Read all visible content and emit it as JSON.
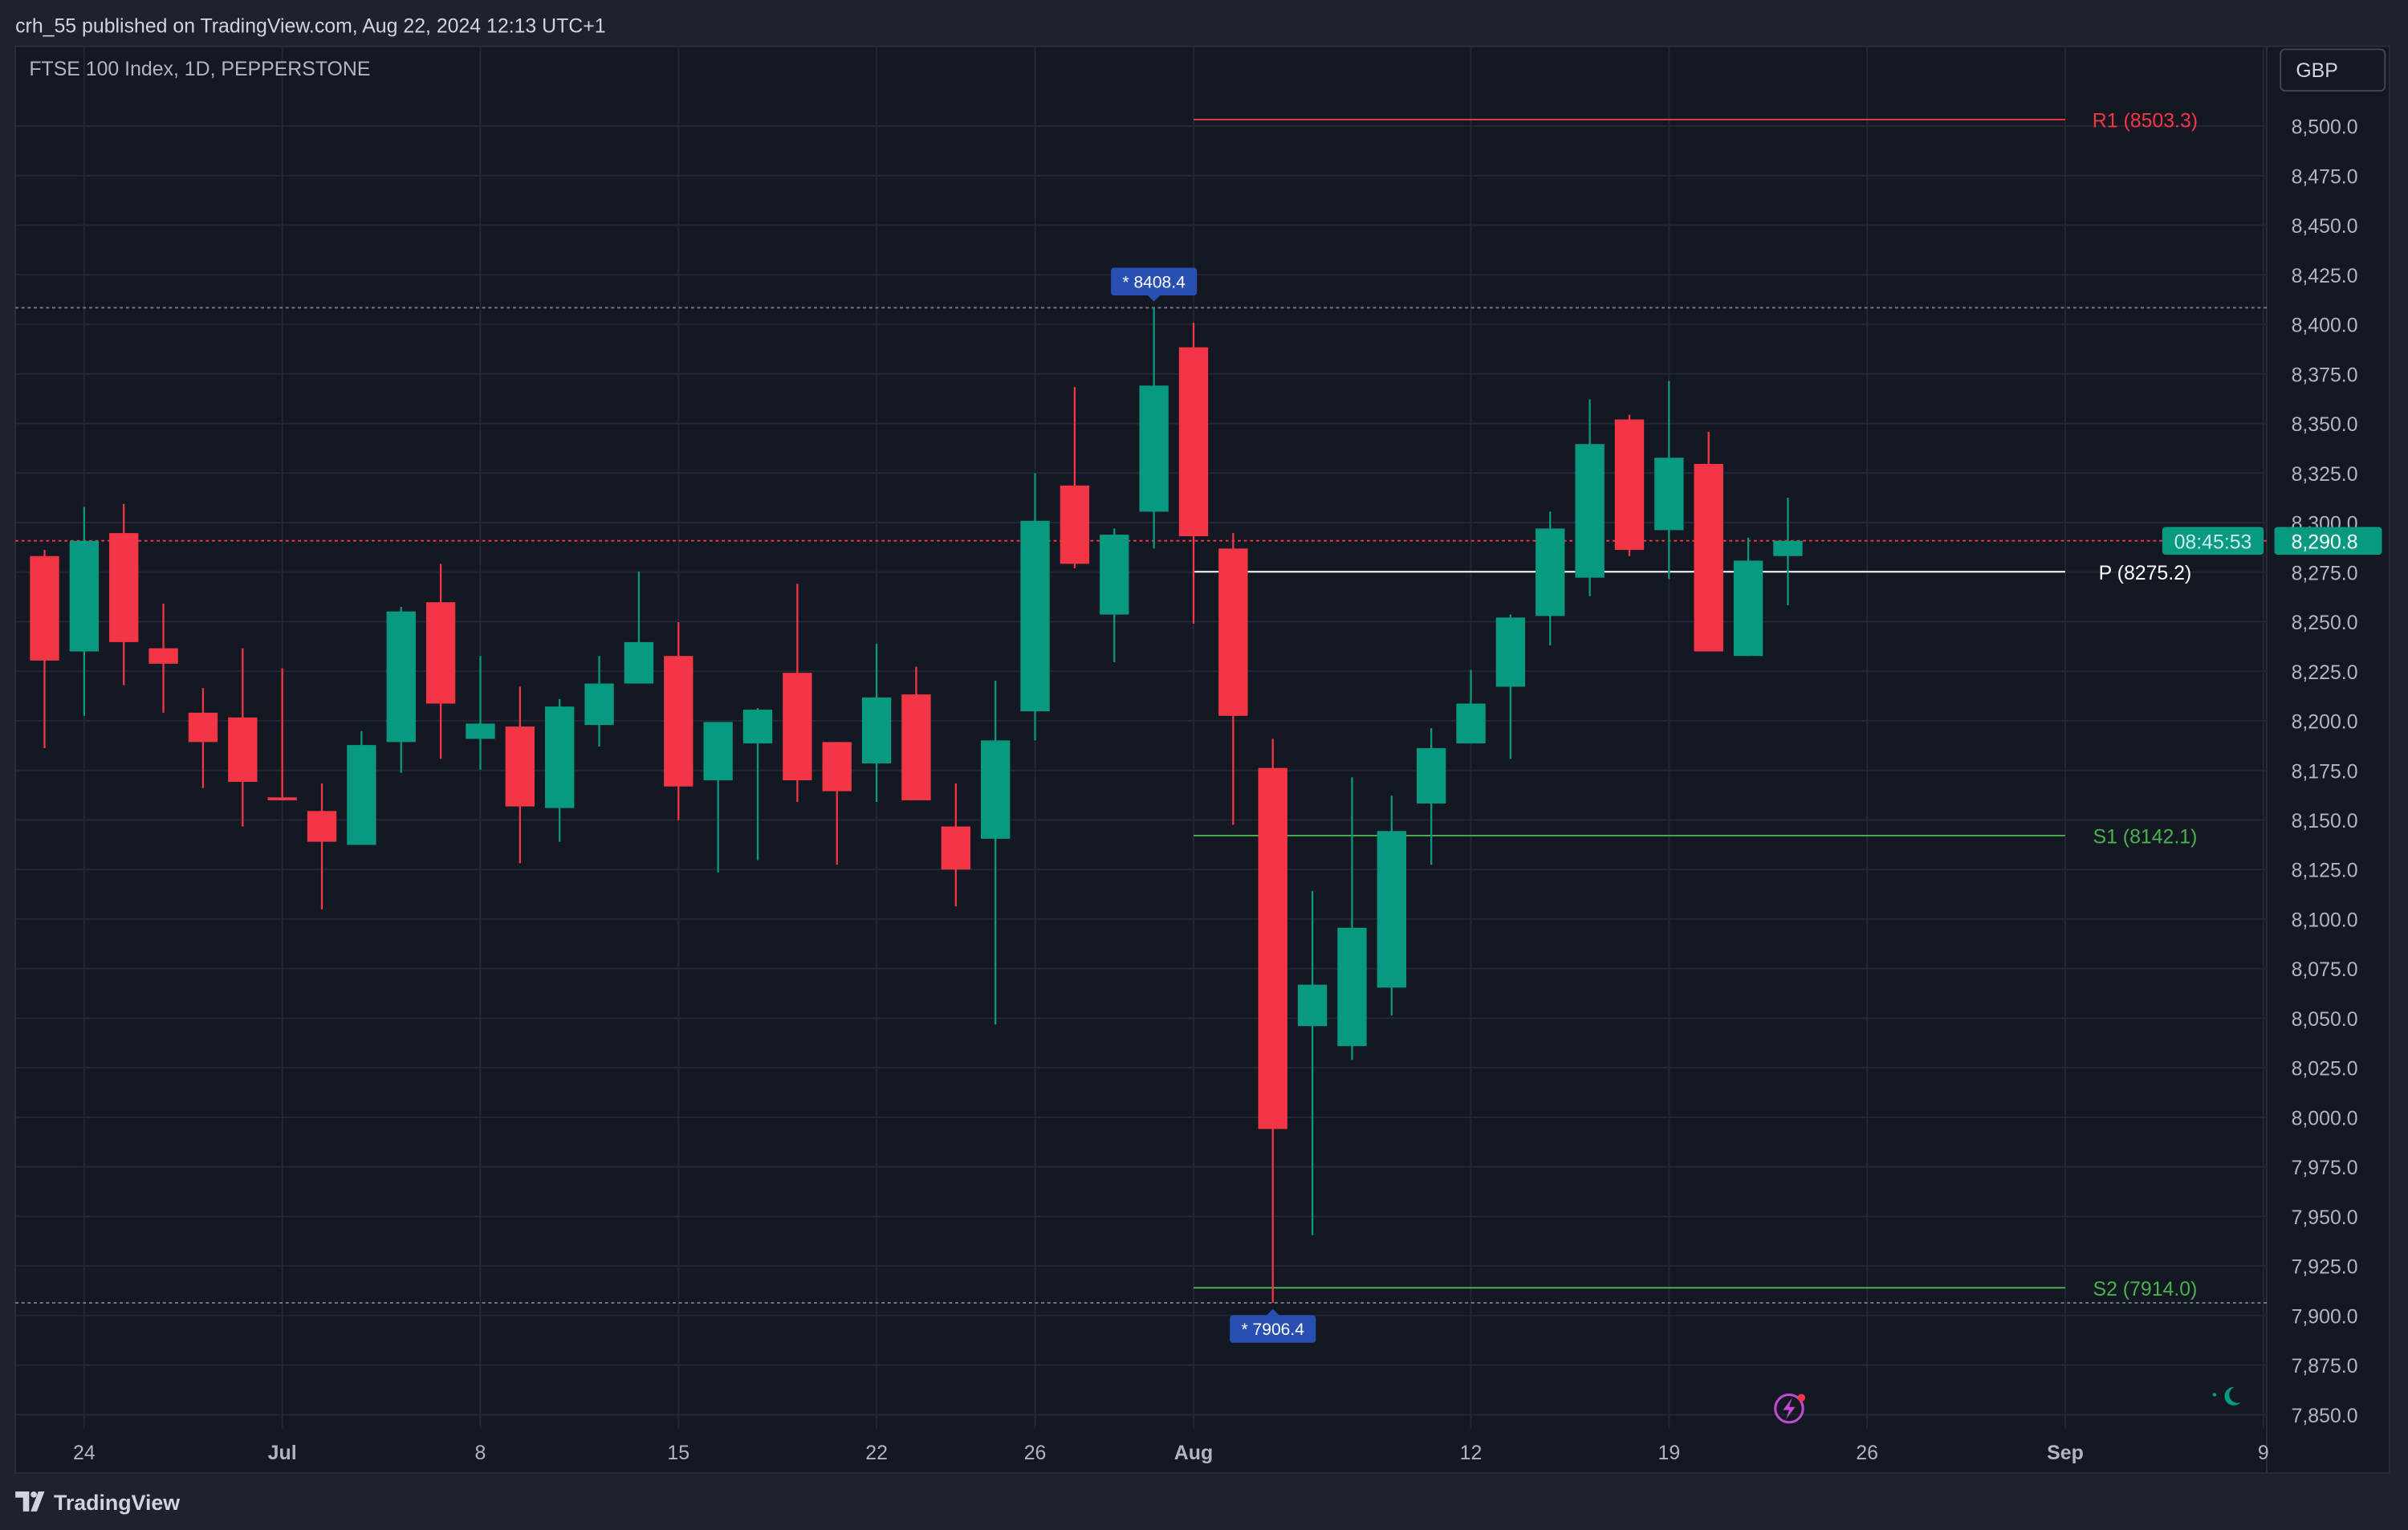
{
  "header": {
    "published": "crh_55 published on TradingView.com, Aug 22, 2024 12:13 UTC+1"
  },
  "footer": {
    "brand": "TradingView"
  },
  "currency_button": "GBP",
  "colors": {
    "up": "#089981",
    "down": "#f23645",
    "background": "#141823",
    "panel": "#1e222d",
    "marker": "#2850b4",
    "r1": "#f23645",
    "pivot": "#ffffff",
    "support": "#4caf50"
  },
  "icons": [
    "lightning-icon",
    "moon-icon",
    "tradingview-logo-icon"
  ],
  "chart_data": {
    "type": "candlestick",
    "title": "FTSE 100 Index, 1D, PEPPERSTONE",
    "ylim": [
      7835,
      8530
    ],
    "grid": true,
    "y_ticks": [
      "8,500.0",
      "8,475.0",
      "8,450.0",
      "8,425.0",
      "8,400.0",
      "8,375.0",
      "8,350.0",
      "8,325.0",
      "8,300.0",
      "8,275.0",
      "8,250.0",
      "8,225.0",
      "8,200.0",
      "8,175.0",
      "8,150.0",
      "8,125.0",
      "8,100.0",
      "8,075.0",
      "8,050.0",
      "8,025.0",
      "8,000.0",
      "7,975.0",
      "7,950.0",
      "7,925.0",
      "7,900.0",
      "7,875.0",
      "7,850.0"
    ],
    "x_ticks": [
      {
        "label": "24",
        "date": "2024-06-24"
      },
      {
        "label": "Jul",
        "date": "2024-07-01",
        "bold": true
      },
      {
        "label": "8",
        "date": "2024-07-08"
      },
      {
        "label": "15",
        "date": "2024-07-15"
      },
      {
        "label": "22",
        "date": "2024-07-22"
      },
      {
        "label": "26",
        "date": "2024-07-26"
      },
      {
        "label": "Aug",
        "date": "2024-08-01",
        "bold": true
      },
      {
        "label": "12",
        "date": "2024-08-12"
      },
      {
        "label": "19",
        "date": "2024-08-19"
      },
      {
        "label": "26",
        "date": "2024-08-26"
      },
      {
        "label": "Sep",
        "date": "2024-09-02",
        "bold": true
      },
      {
        "label": "9",
        "date": "2024-09-09"
      }
    ],
    "columns": [
      "date",
      "open",
      "high",
      "low",
      "close"
    ],
    "candles": [
      [
        "2024-06-21",
        8283.1,
        8286.2,
        8186.2,
        8230.4
      ],
      [
        "2024-06-24",
        8235.0,
        8307.9,
        8202.5,
        8290.8
      ],
      [
        "2024-06-25",
        8294.7,
        8309.4,
        8218.0,
        8239.7
      ],
      [
        "2024-06-26",
        8236.6,
        8259.1,
        8204.1,
        8228.8
      ],
      [
        "2024-06-27",
        8204.1,
        8216.5,
        8166.1,
        8189.3
      ],
      [
        "2024-06-28",
        8201.7,
        8236.6,
        8146.7,
        8169.2
      ],
      [
        "2024-07-01",
        8161.4,
        8226.5,
        8159.9,
        8159.9
      ],
      [
        "2024-07-02",
        8154.5,
        8168.4,
        8104.9,
        8139.0
      ],
      [
        "2024-07-03",
        8137.4,
        8194.8,
        8137.4,
        8187.8
      ],
      [
        "2024-07-04",
        8189.3,
        8257.5,
        8173.8,
        8255.2
      ],
      [
        "2024-07-05",
        8259.8,
        8279.2,
        8180.8,
        8208.7
      ],
      [
        "2024-07-08",
        8190.9,
        8232.7,
        8175.4,
        8198.6
      ],
      [
        "2024-07-09",
        8197.1,
        8217.2,
        8128.1,
        8156.8
      ],
      [
        "2024-07-10",
        8156.0,
        8211.0,
        8139.0,
        8207.2
      ],
      [
        "2024-07-11",
        8197.9,
        8232.7,
        8187.0,
        8218.8
      ],
      [
        "2024-07-12",
        8218.8,
        8275.3,
        8218.8,
        8239.7
      ],
      [
        "2024-07-15",
        8232.7,
        8249.8,
        8149.8,
        8166.9
      ],
      [
        "2024-07-16",
        8170.0,
        8199.4,
        8123.5,
        8199.4
      ],
      [
        "2024-07-17",
        8188.6,
        8206.4,
        8129.7,
        8205.6
      ],
      [
        "2024-07-18",
        8224.2,
        8269.1,
        8159.1,
        8170.0
      ],
      [
        "2024-07-19",
        8189.3,
        8189.3,
        8127.4,
        8164.5
      ],
      [
        "2024-07-22",
        8178.5,
        8238.9,
        8159.1,
        8211.8
      ],
      [
        "2024-07-23",
        8213.3,
        8227.3,
        8159.9,
        8159.9
      ],
      [
        "2024-07-24",
        8146.7,
        8168.4,
        8106.4,
        8125.0
      ],
      [
        "2024-07-25",
        8140.5,
        8220.3,
        8046.8,
        8190.1
      ],
      [
        "2024-07-26",
        8204.8,
        8324.9,
        8190.1,
        8300.9
      ],
      [
        "2024-07-29",
        8318.7,
        8368.3,
        8276.9,
        8279.2
      ],
      [
        "2024-07-30",
        8253.6,
        8297.0,
        8229.6,
        8293.9
      ],
      [
        "2024-07-31",
        8305.5,
        8408.4,
        8286.9,
        8369.1
      ],
      [
        "2024-08-01",
        8388.4,
        8400.8,
        8249.0,
        8293.1
      ],
      [
        "2024-08-02",
        8286.9,
        8294.7,
        8147.5,
        8202.5
      ],
      [
        "2024-08-05",
        8176.2,
        8190.9,
        7906.4,
        7994.1
      ],
      [
        "2024-08-06",
        8046.0,
        8114.2,
        7940.6,
        8066.9
      ],
      [
        "2024-08-07",
        8035.9,
        8171.5,
        8029.0,
        8095.6
      ],
      [
        "2024-08-08",
        8065.4,
        8162.2,
        8051.4,
        8144.4
      ],
      [
        "2024-08-09",
        8158.3,
        8196.3,
        8127.4,
        8186.2
      ],
      [
        "2024-08-12",
        8188.6,
        8225.7,
        8188.6,
        8208.7
      ],
      [
        "2024-08-13",
        8217.2,
        8253.6,
        8180.8,
        8252.1
      ],
      [
        "2024-08-14",
        8252.9,
        8305.5,
        8238.1,
        8297.0
      ],
      [
        "2024-08-15",
        8272.2,
        8362.1,
        8262.9,
        8339.6
      ],
      [
        "2024-08-16",
        8352.0,
        8354.4,
        8283.1,
        8286.2
      ],
      [
        "2024-08-19",
        8296.2,
        8371.4,
        8271.5,
        8332.7
      ],
      [
        "2024-08-20",
        8329.6,
        8345.8,
        8235.0,
        8235.0
      ],
      [
        "2024-08-21",
        8232.7,
        8292.4,
        8232.7,
        8280.8
      ],
      [
        "2024-08-22",
        8283.1,
        8312.5,
        8258.3,
        8290.8
      ]
    ],
    "pivots": [
      {
        "label": "R1 (8503.3)",
        "value": 8503.3,
        "color": "#f23645"
      },
      {
        "label": "P (8275.2)",
        "value": 8275.2,
        "color": "#ffffff"
      },
      {
        "label": "S1 (8142.1)",
        "value": 8142.1,
        "color": "#4caf50"
      },
      {
        "label": "S2 (7914.0)",
        "value": 7914.0,
        "color": "#4caf50"
      }
    ],
    "pivot_range": [
      "2024-08-01",
      "2024-09-02"
    ],
    "high_marker": {
      "label": "* 8408.4",
      "value": 8408.4,
      "date": "2024-07-31"
    },
    "low_marker": {
      "label": "* 7906.4",
      "value": 7906.4,
      "date": "2024-08-05"
    },
    "last_price": {
      "value": 8290.8,
      "label": "8,290.8",
      "countdown": "08:45:53"
    }
  }
}
